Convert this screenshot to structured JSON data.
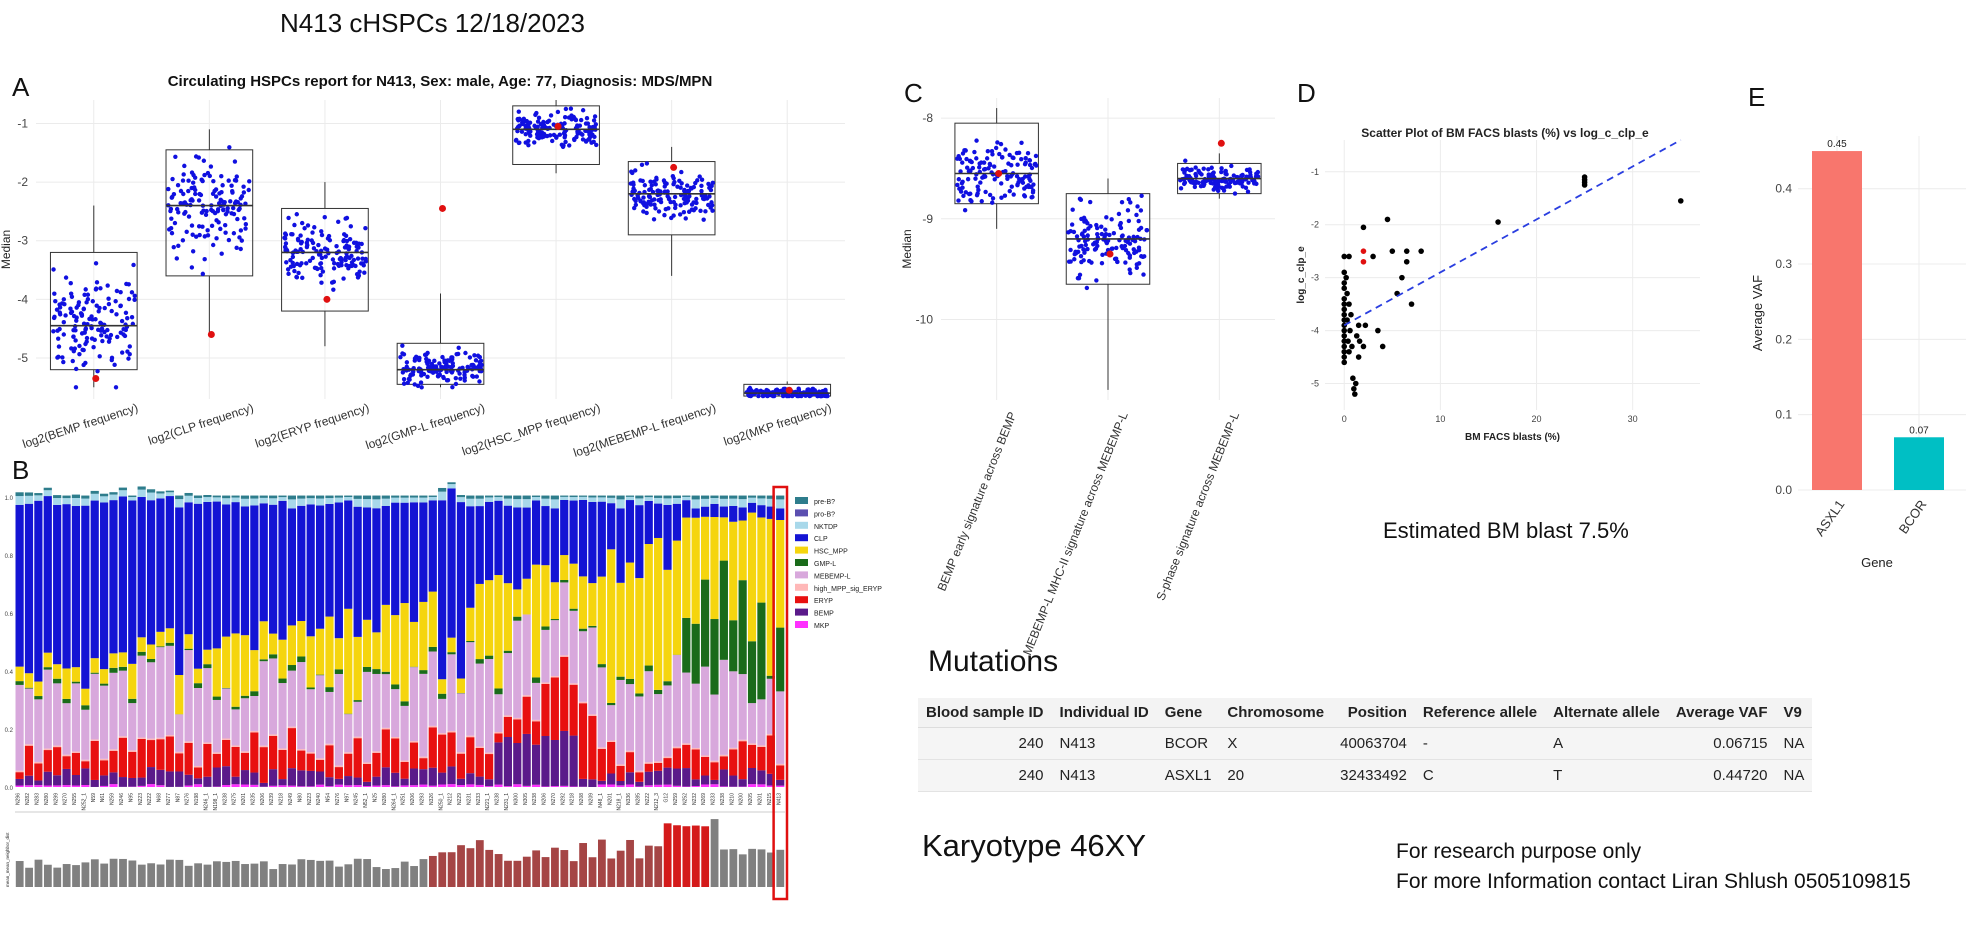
{
  "page": {
    "title": "N413 cHSPCs 12/18/2023",
    "estimated_blast": "Estimated BM blast 7.5%",
    "mutations_heading": "Mutations",
    "karyotype": "Karyotype 46XY",
    "footer_line1": "For research purpose only",
    "footer_line2": "For more Information contact Liran Shlush 0505109815"
  },
  "mutations_table": {
    "headers": [
      "Blood sample ID",
      "Individual ID",
      "Gene",
      "Chromosome",
      "Position",
      "Reference allele",
      "Alternate allele",
      "Average VAF",
      "V9"
    ],
    "rows": [
      [
        "240",
        "N413",
        "BCOR",
        "X",
        "40063704",
        "-",
        "A",
        "0.06715",
        "NA"
      ],
      [
        "240",
        "N413",
        "ASXL1",
        "20",
        "32433492",
        "C",
        "T",
        "0.44720",
        "NA"
      ]
    ]
  },
  "colors": {
    "points": "#1010e0",
    "highlight": "#e01010",
    "box": "#333333",
    "asxl1": "#f8766d",
    "bcor": "#00bfc4"
  },
  "chart_data": [
    {
      "panel": "A",
      "type": "box",
      "title": "Circulating HSPCs report for N413, Sex: male, Age: 77, Diagnosis: MDS/MPN",
      "ylabel": "Median",
      "ylim": [
        -5.7,
        -0.6
      ],
      "yticks": [
        -1,
        -2,
        -3,
        -4,
        -5
      ],
      "categories": [
        "log2(BEMP frequency)",
        "log2(CLP frequency)",
        "log2(ERYP frequency)",
        "log2(GMP-L frequency)",
        "log2(HSC_MPP frequency)",
        "log2(MEBEMP-L frequency)",
        "log2(MKP frequency)"
      ],
      "boxes": [
        {
          "q1": -5.2,
          "median": -4.45,
          "q3": -3.2,
          "whisker_low": -5.5,
          "whisker_high": -2.4,
          "sample": -5.35,
          "spread": 0.9,
          "n": 150
        },
        {
          "q1": -3.6,
          "median": -2.4,
          "q3": -1.45,
          "whisker_low": -4.6,
          "whisker_high": -1.1,
          "sample": -4.6,
          "spread": 0.8,
          "n": 150
        },
        {
          "q1": -4.2,
          "median": -3.2,
          "q3": -2.45,
          "whisker_low": -4.8,
          "whisker_high": -2.0,
          "sample": -4.0,
          "spread": 0.55,
          "n": 150
        },
        {
          "q1": -5.45,
          "median": -5.2,
          "q3": -4.75,
          "whisker_low": -5.5,
          "whisker_high": -3.9,
          "sample": -2.45,
          "spread": 0.3,
          "n": 150
        },
        {
          "q1": -1.7,
          "median": -1.1,
          "q3": -0.7,
          "whisker_low": -1.85,
          "whisker_high": -0.6,
          "sample": -1.05,
          "spread": 0.3,
          "n": 150
        },
        {
          "q1": -2.9,
          "median": -2.2,
          "q3": -1.65,
          "whisker_low": -3.6,
          "whisker_high": -1.4,
          "sample": -1.75,
          "spread": 0.35,
          "n": 150
        },
        {
          "q1": -5.65,
          "median": -5.6,
          "q3": -5.45,
          "whisker_low": -5.65,
          "whisker_high": -5.4,
          "sample": -5.55,
          "spread": 0.08,
          "n": 150
        }
      ]
    },
    {
      "panel": "B",
      "type": "stacked_bar",
      "legend": [
        "pre-B?",
        "pro-B?",
        "NKTDP",
        "CLP",
        "HSC_MPP",
        "GMP-L",
        "MEBEMP-L",
        "high_MPP_sig_ERYP",
        "ERYP",
        "BEMP",
        "MKP"
      ],
      "legend_colors": [
        "#2e7d8c",
        "#5b4fb0",
        "#a8d8ea",
        "#1414d4",
        "#f5d50e",
        "#1a6b1a",
        "#d8a8dc",
        "#ffb8b8",
        "#e81010",
        "#5a1a8a",
        "#ff30ff"
      ],
      "yticks": [
        "1.0",
        "0.8",
        "0.6",
        "0.4",
        "0.2",
        "0.0"
      ],
      "n_samples": 82,
      "sub_ylabel": "mean_mean_neighbor_dist",
      "sample_labels": [
        "N296",
        "N282",
        "N283",
        "N280",
        "N299",
        "N270",
        "N255",
        "N252_1",
        "N59",
        "N61",
        "N259",
        "N246",
        "N95",
        "N223",
        "N222",
        "N68",
        "N277",
        "N87",
        "N276",
        "N198",
        "N246_1",
        "N198_1",
        "N238",
        "N275",
        "N201",
        "N235",
        "N206",
        "N239",
        "N218",
        "N249",
        "N80",
        "N223",
        "N240",
        "N54",
        "N276",
        "N97",
        "N245",
        "N52_1",
        "N25",
        "N280",
        "N264_1",
        "N251",
        "N206",
        "N293",
        "N326",
        "N250_1",
        "N212",
        "N229",
        "N231",
        "N233",
        "N221_1",
        "N238",
        "N231_1",
        "N300",
        "N305",
        "N238",
        "N206",
        "N270",
        "N292",
        "N218",
        "N208",
        "N209",
        "N48_1",
        "N201",
        "N218_1",
        "N336",
        "N285",
        "N222",
        "N212_3",
        "G12",
        "N259",
        "N252",
        "N232",
        "N269",
        "N233",
        "N238",
        "N210",
        "N200",
        "N205",
        "N201",
        "N215",
        "N413"
      ]
    },
    {
      "panel": "C",
      "type": "box",
      "ylabel": "Median",
      "ylim": [
        -10.8,
        -7.8
      ],
      "yticks": [
        -8,
        -9,
        -10
      ],
      "categories": [
        "BEMP early signature across BEMP",
        "MEBEMP-L MHC-II signature across MEBEMP-L",
        "S-phase signature across MEBEMP-L"
      ],
      "boxes": [
        {
          "q1": -8.85,
          "median": -8.55,
          "q3": -8.05,
          "whisker_low": -9.1,
          "whisker_high": -7.9,
          "sample": -8.55,
          "spread": 0.3,
          "n": 140
        },
        {
          "q1": -9.65,
          "median": -9.2,
          "q3": -8.75,
          "whisker_low": -10.7,
          "whisker_high": -8.6,
          "sample": -9.35,
          "spread": 0.35,
          "n": 140
        },
        {
          "q1": -8.75,
          "median": -8.6,
          "q3": -8.45,
          "whisker_low": -8.8,
          "whisker_high": -8.35,
          "sample": -8.25,
          "spread": 0.12,
          "n": 140
        }
      ]
    },
    {
      "panel": "D",
      "type": "scatter",
      "title": "Scatter Plot of BM FACS blasts (%) vs log_c_clp_e",
      "xlabel": "BM FACS blasts (%)",
      "ylabel": "log_c_clp_e",
      "xlim": [
        -2,
        37
      ],
      "ylim": [
        -5.5,
        -0.4
      ],
      "xticks": [
        0,
        10,
        20,
        30
      ],
      "yticks": [
        -1,
        -2,
        -3,
        -4,
        -5
      ],
      "trend": {
        "x0": 0,
        "y0": -3.9,
        "x1": 35,
        "y1": -0.4
      },
      "black_points": [
        [
          0,
          -2.6
        ],
        [
          0,
          -2.9
        ],
        [
          0,
          -3.1
        ],
        [
          0,
          -3.2
        ],
        [
          0,
          -3.4
        ],
        [
          0,
          -3.5
        ],
        [
          0,
          -3.6
        ],
        [
          0,
          -3.7
        ],
        [
          0,
          -3.8
        ],
        [
          0,
          -3.9
        ],
        [
          0,
          -4.0
        ],
        [
          0,
          -4.1
        ],
        [
          0,
          -4.2
        ],
        [
          0,
          -4.3
        ],
        [
          0,
          -4.4
        ],
        [
          0,
          -4.5
        ],
        [
          0,
          -4.6
        ],
        [
          0.2,
          -3.0
        ],
        [
          0.3,
          -3.3
        ],
        [
          0.3,
          -3.8
        ],
        [
          0.4,
          -4.2
        ],
        [
          0.5,
          -3.5
        ],
        [
          0.5,
          -4.4
        ],
        [
          0.5,
          -2.6
        ],
        [
          0.6,
          -4.0
        ],
        [
          0.7,
          -3.7
        ],
        [
          0.8,
          -4.3
        ],
        [
          0.9,
          -4.9
        ],
        [
          1.0,
          -5.1
        ],
        [
          1.1,
          -5.2
        ],
        [
          1.2,
          -5.0
        ],
        [
          1.3,
          -4.1
        ],
        [
          1.5,
          -3.9
        ],
        [
          1.5,
          -4.5
        ],
        [
          1.6,
          -4.2
        ],
        [
          2.0,
          -4.3
        ],
        [
          2.2,
          -3.9
        ],
        [
          2.0,
          -2.05
        ],
        [
          3.0,
          -2.6
        ],
        [
          3.5,
          -4.0
        ],
        [
          4.0,
          -4.3
        ],
        [
          4.5,
          -1.9
        ],
        [
          5.0,
          -2.5
        ],
        [
          5.5,
          -3.3
        ],
        [
          6.0,
          -3.0
        ],
        [
          7.0,
          -3.5
        ],
        [
          6.5,
          -2.5
        ],
        [
          6.5,
          -2.7
        ],
        [
          8.0,
          -2.5
        ],
        [
          16.0,
          -1.95
        ],
        [
          25.0,
          -1.1
        ],
        [
          25.0,
          -1.15
        ],
        [
          25.0,
          -1.2
        ],
        [
          25.0,
          -1.25
        ],
        [
          35.0,
          -1.55
        ]
      ],
      "red_points": [
        [
          2.0,
          -2.5
        ],
        [
          2.0,
          -2.7
        ]
      ]
    },
    {
      "panel": "E",
      "type": "bar",
      "xlabel": "Gene",
      "ylabel": "Average VAF",
      "ylim": [
        0,
        0.47
      ],
      "yticks": [
        "0.0",
        "0.1",
        "0.2",
        "0.3",
        "0.4"
      ],
      "categories": [
        "ASXL1",
        "BCOR"
      ],
      "values": [
        0.45,
        0.07
      ],
      "value_labels": [
        "0.45",
        "0.07"
      ]
    }
  ],
  "panel_letters": {
    "a": "A",
    "b": "B",
    "c": "C",
    "d": "D",
    "e": "E"
  }
}
